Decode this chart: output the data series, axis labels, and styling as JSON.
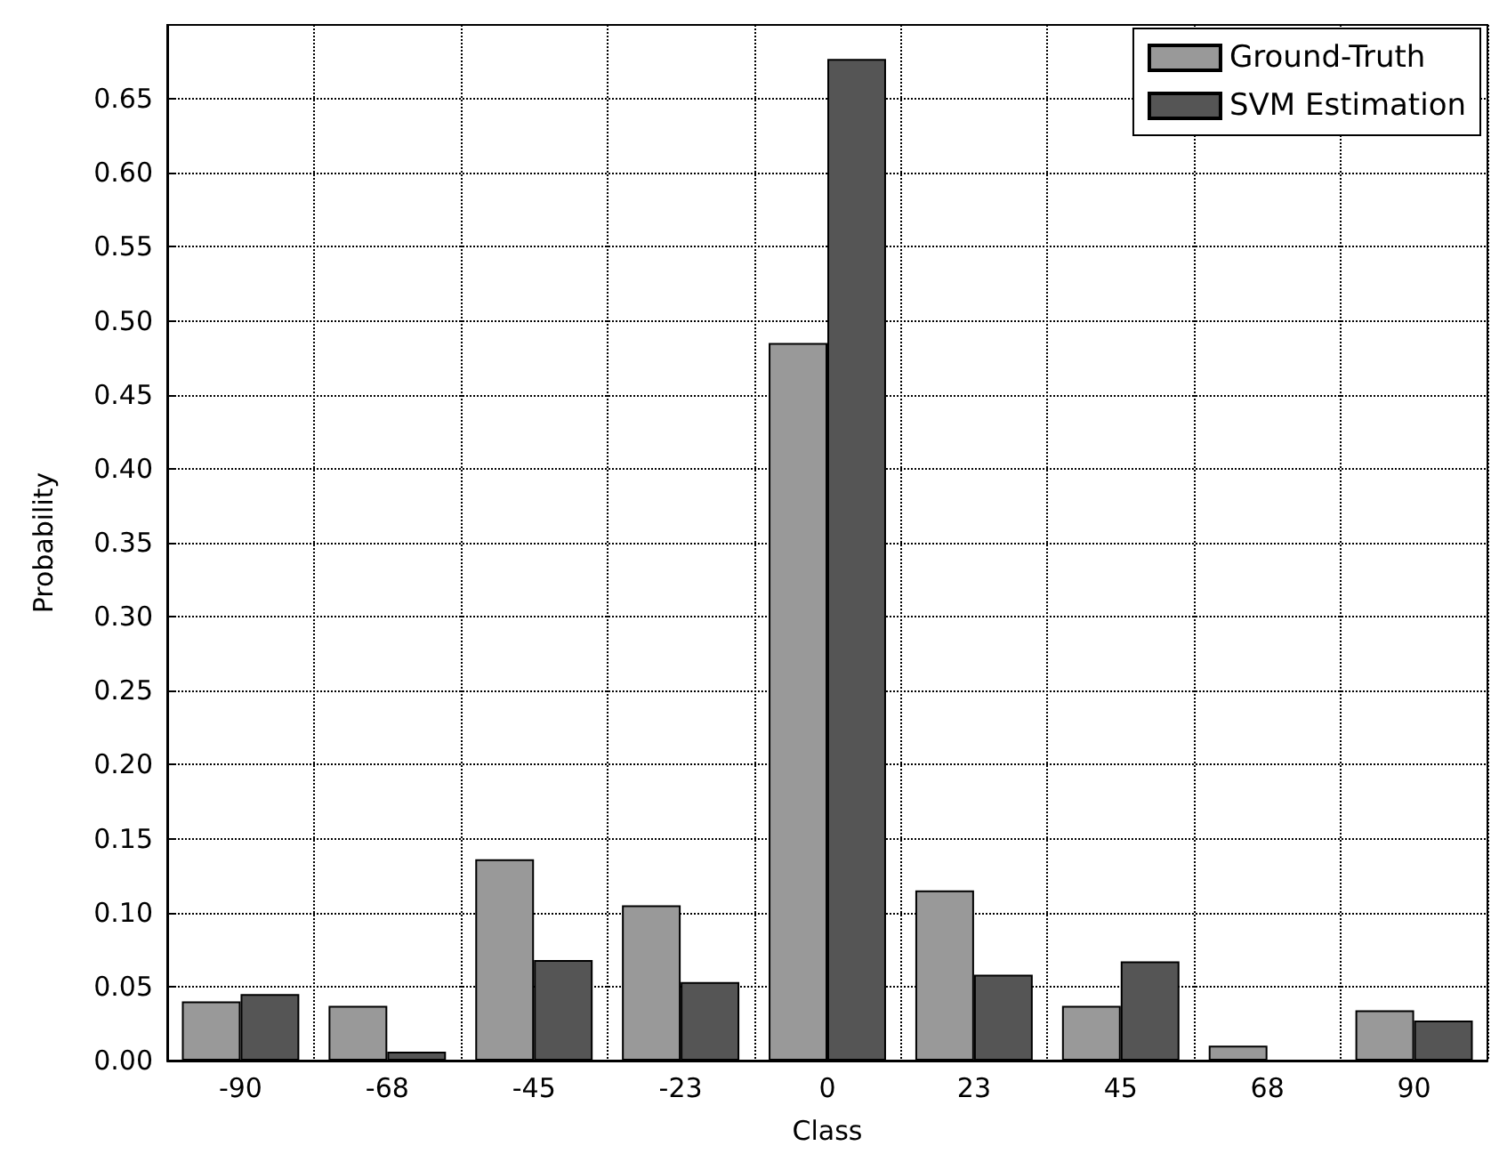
{
  "chart_data": {
    "type": "bar",
    "xlabel": "Class",
    "ylabel": "Probability",
    "categories": [
      "-90",
      "-68",
      "-45",
      "-23",
      "0",
      "23",
      "45",
      "68",
      "90"
    ],
    "series": [
      {
        "name": "Ground-Truth",
        "color": "#999999",
        "values": [
          0.04,
          0.037,
          0.136,
          0.105,
          0.485,
          0.115,
          0.037,
          0.01,
          0.034
        ]
      },
      {
        "name": "SVM Estimation",
        "color": "#555555",
        "values": [
          0.045,
          0.006,
          0.068,
          0.053,
          0.677,
          0.058,
          0.067,
          null,
          0.027
        ]
      }
    ],
    "ylim": [
      0,
      0.7
    ],
    "yticks": [
      {
        "value": 0,
        "label": "0.00"
      },
      0.05,
      {
        "value": 0.1,
        "label": "0.10"
      },
      0.15,
      {
        "value": 0.2,
        "label": "0.20"
      },
      0.25,
      {
        "value": 0.3,
        "label": "0.30"
      },
      0.35,
      {
        "value": 0.4,
        "label": "0.40"
      },
      0.45,
      {
        "value": 0.5,
        "label": "0.50"
      },
      0.55,
      {
        "value": 0.6,
        "label": "0.60"
      },
      0.65
    ],
    "grid": true,
    "legend": "top right"
  }
}
